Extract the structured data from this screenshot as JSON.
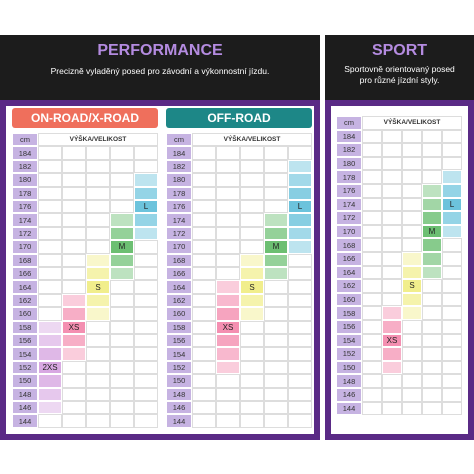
{
  "performance": {
    "title": "PERFORMANCE",
    "subtitle": "Precizně vyladěný posed pro závodní a výkonnostní jízdu."
  },
  "sport": {
    "title": "SPORT",
    "subtitle": [
      "Sportovně orientovaný posed",
      "pro různé jízdní styly."
    ]
  },
  "tables": [
    {
      "banner": "ON-ROAD/X-ROAD",
      "unit": "cm",
      "header": "VÝŠKA/VELIKOST",
      "heights": [
        184,
        182,
        180,
        178,
        176,
        174,
        172,
        170,
        168,
        166,
        164,
        162,
        160,
        158,
        156,
        154,
        152,
        150,
        148,
        146,
        144
      ],
      "sizes": [
        {
          "label": "2XS",
          "from": 146,
          "to": 158,
          "color": "#d8a8e2"
        },
        {
          "label": "XS",
          "from": 154,
          "to": 162,
          "color": "#f48fb1"
        },
        {
          "label": "S",
          "from": 160,
          "to": 168,
          "color": "#f1ee8c"
        },
        {
          "label": "M",
          "from": 166,
          "to": 174,
          "color": "#6cbf72"
        },
        {
          "label": "L",
          "from": 172,
          "to": 180,
          "color": "#6cc3dc"
        }
      ]
    },
    {
      "banner": "OFF-ROAD",
      "unit": "cm",
      "header": "VÝŠKA/VELIKOST",
      "heights": [
        184,
        182,
        180,
        178,
        176,
        174,
        172,
        170,
        168,
        166,
        164,
        162,
        160,
        158,
        156,
        154,
        152,
        150,
        148,
        146,
        144
      ],
      "sizes": [
        {
          "label": "XS",
          "from": 152,
          "to": 164,
          "color": "#f48fb1"
        },
        {
          "label": "S",
          "from": 160,
          "to": 168,
          "color": "#f1ee8c"
        },
        {
          "label": "M",
          "from": 166,
          "to": 174,
          "color": "#6cbf72"
        },
        {
          "label": "L",
          "from": 170,
          "to": 182,
          "color": "#6cc3dc"
        }
      ]
    },
    {
      "unit": "cm",
      "header": "VÝŠKA/VELIKOST",
      "heights": [
        184,
        182,
        180,
        178,
        176,
        174,
        172,
        170,
        168,
        166,
        164,
        162,
        160,
        158,
        156,
        154,
        152,
        150,
        148,
        146,
        144
      ],
      "sizes": [
        {
          "label": "XS",
          "from": 150,
          "to": 158,
          "color": "#f48fb1"
        },
        {
          "label": "S",
          "from": 158,
          "to": 166,
          "color": "#f1ee8c"
        },
        {
          "label": "M",
          "from": 164,
          "to": 176,
          "color": "#6cbf72"
        },
        {
          "label": "L",
          "from": 170,
          "to": 178,
          "color": "#6cc3dc"
        }
      ]
    }
  ]
}
